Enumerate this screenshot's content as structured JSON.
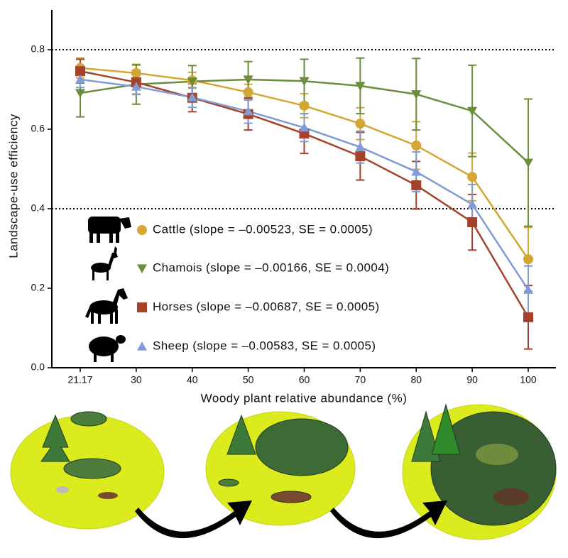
{
  "chart_data": {
    "type": "line",
    "x_label": "Woody plant relative abundance (%)",
    "y_label": "Landscape-use efficiency",
    "categories": [
      "21.17",
      "30",
      "40",
      "50",
      "60",
      "70",
      "80",
      "90",
      "100"
    ],
    "ylim": [
      0,
      0.9
    ],
    "yticks": [
      {
        "value": 0,
        "label": "0.0"
      },
      0.2,
      0.4,
      0.6,
      0.8
    ],
    "hlines": [
      0.4,
      0.8
    ],
    "series": [
      {
        "name": "Cattle (slope = –0.00523, SE = 0.0005)",
        "color": "#d4a634",
        "marker": "circle",
        "values": [
          0.754,
          0.741,
          0.723,
          0.693,
          0.659,
          0.614,
          0.559,
          0.48,
          0.273
        ],
        "errors": [
          0.025,
          0.02,
          0.02,
          0.02,
          0.03,
          0.04,
          0.06,
          0.06,
          0.08
        ]
      },
      {
        "name": "Chamois (slope = –0.00166, SE = 0.0004)",
        "color": "#6c8e3c",
        "marker": "triangle-down",
        "values": [
          0.691,
          0.713,
          0.72,
          0.725,
          0.721,
          0.709,
          0.688,
          0.646,
          0.516
        ],
        "errors": [
          0.06,
          0.05,
          0.04,
          0.045,
          0.055,
          0.07,
          0.09,
          0.115,
          0.16
        ]
      },
      {
        "name": "Horses (slope = –0.00687, SE = 0.0005)",
        "color": "#a6422a",
        "marker": "square",
        "values": [
          0.746,
          0.718,
          0.679,
          0.638,
          0.589,
          0.532,
          0.459,
          0.366,
          0.127
        ],
        "errors": [
          0.03,
          0.03,
          0.035,
          0.04,
          0.05,
          0.06,
          0.06,
          0.07,
          0.08
        ]
      },
      {
        "name": "Sheep (slope = –0.00583, SE = 0.0005)",
        "color": "#7f9bd8",
        "marker": "triangle-up",
        "values": [
          0.725,
          0.707,
          0.68,
          0.645,
          0.604,
          0.555,
          0.493,
          0.411,
          0.196
        ],
        "errors": [
          0.02,
          0.02,
          0.025,
          0.03,
          0.035,
          0.04,
          0.05,
          0.05,
          0.06
        ]
      }
    ]
  }
}
